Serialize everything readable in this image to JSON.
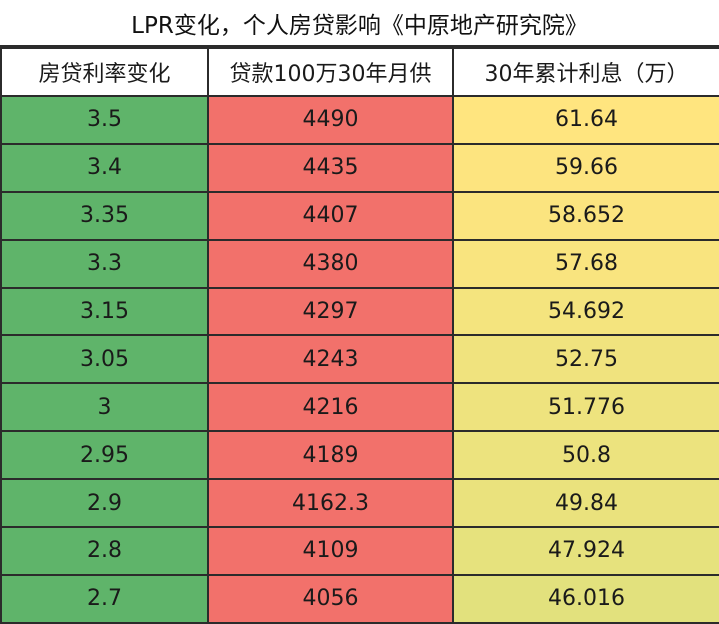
{
  "title": "LPR变化，个人房贷影响《中原地产研究院》",
  "columns": [
    "房贷利率变化",
    "贷款100万30年月供",
    "30年累计利息（万）"
  ],
  "rows": [
    {
      "rate": "3.5",
      "payment": "4490",
      "interest": "61.64",
      "interest_color": "#ffe57f"
    },
    {
      "rate": "3.4",
      "payment": "4435",
      "interest": "59.66",
      "interest_color": "#fde47f"
    },
    {
      "rate": "3.35",
      "payment": "4407",
      "interest": "58.652",
      "interest_color": "#fbe47f"
    },
    {
      "rate": "3.3",
      "payment": "4380",
      "interest": "57.68",
      "interest_color": "#f9e47f"
    },
    {
      "rate": "3.15",
      "payment": "4297",
      "interest": "54.692",
      "interest_color": "#f4e47e"
    },
    {
      "rate": "3.05",
      "payment": "4243",
      "interest": "52.75",
      "interest_color": "#f0e37e"
    },
    {
      "rate": "3",
      "payment": "4216",
      "interest": "51.776",
      "interest_color": "#eee37e"
    },
    {
      "rate": "2.95",
      "payment": "4189",
      "interest": "50.8",
      "interest_color": "#ece37e"
    },
    {
      "rate": "2.9",
      "payment": "4162.3",
      "interest": "49.84",
      "interest_color": "#eae27d"
    },
    {
      "rate": "2.8",
      "payment": "4109",
      "interest": "47.924",
      "interest_color": "#e6e27d"
    },
    {
      "rate": "2.7",
      "payment": "4056",
      "interest": "46.016",
      "interest_color": "#e2e17d"
    }
  ],
  "colors": {
    "rate_fill": "#5fb46a",
    "payment_fill": "#f2716b",
    "border": "#2b2b2b"
  }
}
